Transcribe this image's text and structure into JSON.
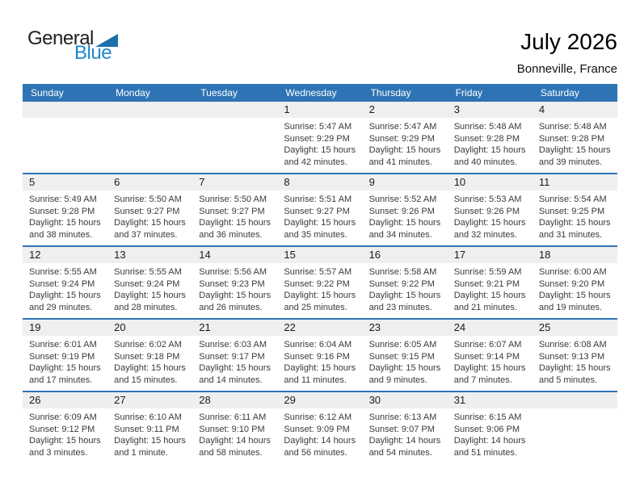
{
  "logo": {
    "general": "General",
    "blue": "Blue"
  },
  "title": "July 2026",
  "subtitle": "Bonneville, France",
  "colors": {
    "header_blue": "#2E74B5",
    "row_band_gray": "#EFEFEF",
    "logo_triangle_blue": "#1B70AD",
    "logo_text_blue": "#2187C9"
  },
  "weekdays": [
    "Sunday",
    "Monday",
    "Tuesday",
    "Wednesday",
    "Thursday",
    "Friday",
    "Saturday"
  ],
  "weeks": [
    [
      {
        "day": "",
        "sunrise": "",
        "sunset": "",
        "daylight1": "",
        "daylight2": ""
      },
      {
        "day": "",
        "sunrise": "",
        "sunset": "",
        "daylight1": "",
        "daylight2": ""
      },
      {
        "day": "",
        "sunrise": "",
        "sunset": "",
        "daylight1": "",
        "daylight2": ""
      },
      {
        "day": "1",
        "sunrise": "Sunrise: 5:47 AM",
        "sunset": "Sunset: 9:29 PM",
        "daylight1": "Daylight: 15 hours",
        "daylight2": "and 42 minutes."
      },
      {
        "day": "2",
        "sunrise": "Sunrise: 5:47 AM",
        "sunset": "Sunset: 9:29 PM",
        "daylight1": "Daylight: 15 hours",
        "daylight2": "and 41 minutes."
      },
      {
        "day": "3",
        "sunrise": "Sunrise: 5:48 AM",
        "sunset": "Sunset: 9:28 PM",
        "daylight1": "Daylight: 15 hours",
        "daylight2": "and 40 minutes."
      },
      {
        "day": "4",
        "sunrise": "Sunrise: 5:48 AM",
        "sunset": "Sunset: 9:28 PM",
        "daylight1": "Daylight: 15 hours",
        "daylight2": "and 39 minutes."
      }
    ],
    [
      {
        "day": "5",
        "sunrise": "Sunrise: 5:49 AM",
        "sunset": "Sunset: 9:28 PM",
        "daylight1": "Daylight: 15 hours",
        "daylight2": "and 38 minutes."
      },
      {
        "day": "6",
        "sunrise": "Sunrise: 5:50 AM",
        "sunset": "Sunset: 9:27 PM",
        "daylight1": "Daylight: 15 hours",
        "daylight2": "and 37 minutes."
      },
      {
        "day": "7",
        "sunrise": "Sunrise: 5:50 AM",
        "sunset": "Sunset: 9:27 PM",
        "daylight1": "Daylight: 15 hours",
        "daylight2": "and 36 minutes."
      },
      {
        "day": "8",
        "sunrise": "Sunrise: 5:51 AM",
        "sunset": "Sunset: 9:27 PM",
        "daylight1": "Daylight: 15 hours",
        "daylight2": "and 35 minutes."
      },
      {
        "day": "9",
        "sunrise": "Sunrise: 5:52 AM",
        "sunset": "Sunset: 9:26 PM",
        "daylight1": "Daylight: 15 hours",
        "daylight2": "and 34 minutes."
      },
      {
        "day": "10",
        "sunrise": "Sunrise: 5:53 AM",
        "sunset": "Sunset: 9:26 PM",
        "daylight1": "Daylight: 15 hours",
        "daylight2": "and 32 minutes."
      },
      {
        "day": "11",
        "sunrise": "Sunrise: 5:54 AM",
        "sunset": "Sunset: 9:25 PM",
        "daylight1": "Daylight: 15 hours",
        "daylight2": "and 31 minutes."
      }
    ],
    [
      {
        "day": "12",
        "sunrise": "Sunrise: 5:55 AM",
        "sunset": "Sunset: 9:24 PM",
        "daylight1": "Daylight: 15 hours",
        "daylight2": "and 29 minutes."
      },
      {
        "day": "13",
        "sunrise": "Sunrise: 5:55 AM",
        "sunset": "Sunset: 9:24 PM",
        "daylight1": "Daylight: 15 hours",
        "daylight2": "and 28 minutes."
      },
      {
        "day": "14",
        "sunrise": "Sunrise: 5:56 AM",
        "sunset": "Sunset: 9:23 PM",
        "daylight1": "Daylight: 15 hours",
        "daylight2": "and 26 minutes."
      },
      {
        "day": "15",
        "sunrise": "Sunrise: 5:57 AM",
        "sunset": "Sunset: 9:22 PM",
        "daylight1": "Daylight: 15 hours",
        "daylight2": "and 25 minutes."
      },
      {
        "day": "16",
        "sunrise": "Sunrise: 5:58 AM",
        "sunset": "Sunset: 9:22 PM",
        "daylight1": "Daylight: 15 hours",
        "daylight2": "and 23 minutes."
      },
      {
        "day": "17",
        "sunrise": "Sunrise: 5:59 AM",
        "sunset": "Sunset: 9:21 PM",
        "daylight1": "Daylight: 15 hours",
        "daylight2": "and 21 minutes."
      },
      {
        "day": "18",
        "sunrise": "Sunrise: 6:00 AM",
        "sunset": "Sunset: 9:20 PM",
        "daylight1": "Daylight: 15 hours",
        "daylight2": "and 19 minutes."
      }
    ],
    [
      {
        "day": "19",
        "sunrise": "Sunrise: 6:01 AM",
        "sunset": "Sunset: 9:19 PM",
        "daylight1": "Daylight: 15 hours",
        "daylight2": "and 17 minutes."
      },
      {
        "day": "20",
        "sunrise": "Sunrise: 6:02 AM",
        "sunset": "Sunset: 9:18 PM",
        "daylight1": "Daylight: 15 hours",
        "daylight2": "and 15 minutes."
      },
      {
        "day": "21",
        "sunrise": "Sunrise: 6:03 AM",
        "sunset": "Sunset: 9:17 PM",
        "daylight1": "Daylight: 15 hours",
        "daylight2": "and 14 minutes."
      },
      {
        "day": "22",
        "sunrise": "Sunrise: 6:04 AM",
        "sunset": "Sunset: 9:16 PM",
        "daylight1": "Daylight: 15 hours",
        "daylight2": "and 11 minutes."
      },
      {
        "day": "23",
        "sunrise": "Sunrise: 6:05 AM",
        "sunset": "Sunset: 9:15 PM",
        "daylight1": "Daylight: 15 hours",
        "daylight2": "and 9 minutes."
      },
      {
        "day": "24",
        "sunrise": "Sunrise: 6:07 AM",
        "sunset": "Sunset: 9:14 PM",
        "daylight1": "Daylight: 15 hours",
        "daylight2": "and 7 minutes."
      },
      {
        "day": "25",
        "sunrise": "Sunrise: 6:08 AM",
        "sunset": "Sunset: 9:13 PM",
        "daylight1": "Daylight: 15 hours",
        "daylight2": "and 5 minutes."
      }
    ],
    [
      {
        "day": "26",
        "sunrise": "Sunrise: 6:09 AM",
        "sunset": "Sunset: 9:12 PM",
        "daylight1": "Daylight: 15 hours",
        "daylight2": "and 3 minutes."
      },
      {
        "day": "27",
        "sunrise": "Sunrise: 6:10 AM",
        "sunset": "Sunset: 9:11 PM",
        "daylight1": "Daylight: 15 hours",
        "daylight2": "and 1 minute."
      },
      {
        "day": "28",
        "sunrise": "Sunrise: 6:11 AM",
        "sunset": "Sunset: 9:10 PM",
        "daylight1": "Daylight: 14 hours",
        "daylight2": "and 58 minutes."
      },
      {
        "day": "29",
        "sunrise": "Sunrise: 6:12 AM",
        "sunset": "Sunset: 9:09 PM",
        "daylight1": "Daylight: 14 hours",
        "daylight2": "and 56 minutes."
      },
      {
        "day": "30",
        "sunrise": "Sunrise: 6:13 AM",
        "sunset": "Sunset: 9:07 PM",
        "daylight1": "Daylight: 14 hours",
        "daylight2": "and 54 minutes."
      },
      {
        "day": "31",
        "sunrise": "Sunrise: 6:15 AM",
        "sunset": "Sunset: 9:06 PM",
        "daylight1": "Daylight: 14 hours",
        "daylight2": "and 51 minutes."
      },
      {
        "day": "",
        "sunrise": "",
        "sunset": "",
        "daylight1": "",
        "daylight2": ""
      }
    ]
  ]
}
